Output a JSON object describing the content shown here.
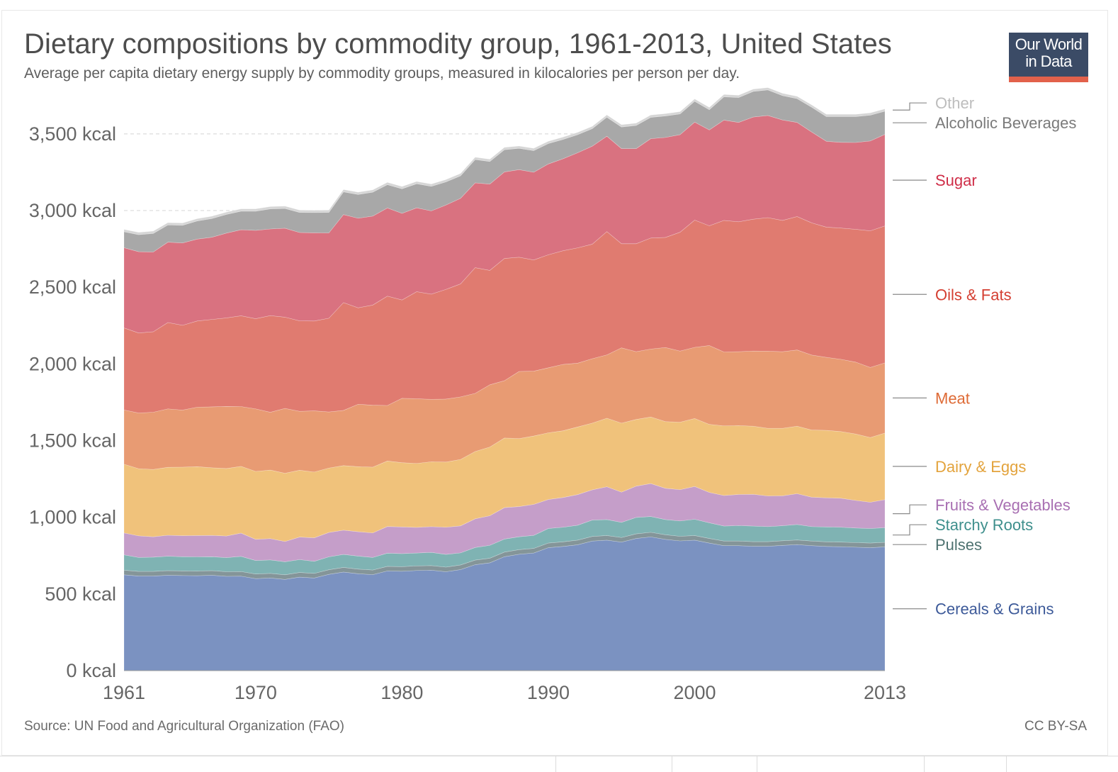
{
  "header": {
    "title": "Dietary compositions by commodity group, 1961-2013, United States",
    "subtitle": "Average per capita dietary energy supply by commodity groups, measured in kilocalories per person per day.",
    "logo_line1": "Our World",
    "logo_line2": "in Data"
  },
  "footer": {
    "source": "Source: UN Food and Agricultural Organization (FAO)",
    "license": "CC BY-SA"
  },
  "chart_data": {
    "type": "area",
    "stacked": true,
    "title": "Dietary compositions by commodity group, 1961-2013, United States",
    "subtitle": "Average per capita dietary energy supply by commodity groups, measured in kilocalories per person per day.",
    "ylim": [
      0,
      3800
    ],
    "y_ticks": [
      0,
      500,
      1000,
      1500,
      2000,
      2500,
      3000,
      3500
    ],
    "y_tick_labels": [
      "0 kcal",
      "500 kcal",
      "1,000 kcal",
      "1,500 kcal",
      "2,000 kcal",
      "2,500 kcal",
      "3,000 kcal",
      "3,500 kcal"
    ],
    "x_ticks": [
      1961,
      1970,
      1980,
      1990,
      2000,
      2013
    ],
    "x_tick_labels": [
      "1961",
      "1970",
      "1980",
      "1990",
      "2000",
      "2013"
    ],
    "grid": true,
    "legend": "right",
    "x": [
      1961,
      1962,
      1963,
      1964,
      1965,
      1966,
      1967,
      1968,
      1969,
      1970,
      1971,
      1972,
      1973,
      1974,
      1975,
      1976,
      1977,
      1978,
      1979,
      1980,
      1981,
      1982,
      1983,
      1984,
      1985,
      1986,
      1987,
      1988,
      1989,
      1990,
      1991,
      1992,
      1993,
      1994,
      1995,
      1996,
      1997,
      1998,
      1999,
      2000,
      2001,
      2002,
      2003,
      2004,
      2005,
      2006,
      2007,
      2008,
      2009,
      2010,
      2011,
      2012,
      2013
    ],
    "cumulative_top": {
      "Cereals & Grains": [
        625,
        617,
        617,
        622,
        620,
        619,
        622,
        615,
        616,
        600,
        604,
        595,
        610,
        604,
        628,
        643,
        632,
        626,
        650,
        648,
        653,
        655,
        645,
        659,
        691,
        703,
        743,
        759,
        767,
        802,
        810,
        821,
        845,
        851,
        838,
        862,
        872,
        856,
        846,
        851,
        832,
        815,
        815,
        811,
        811,
        817,
        822,
        815,
        810,
        808,
        805,
        802,
        807
      ],
      "Pulses": [
        655,
        647,
        647,
        652,
        650,
        649,
        652,
        645,
        646,
        630,
        634,
        625,
        640,
        634,
        658,
        673,
        662,
        656,
        680,
        678,
        683,
        685,
        675,
        689,
        721,
        733,
        773,
        789,
        797,
        832,
        840,
        851,
        875,
        881,
        868,
        892,
        902,
        886,
        876,
        881,
        862,
        845,
        845,
        841,
        841,
        847,
        852,
        845,
        840,
        838,
        835,
        832,
        837
      ],
      "Starchy Roots": [
        755,
        738,
        740,
        746,
        743,
        742,
        743,
        737,
        745,
        718,
        722,
        710,
        724,
        713,
        742,
        758,
        747,
        738,
        766,
        763,
        767,
        771,
        758,
        768,
        803,
        817,
        858,
        873,
        882,
        927,
        935,
        948,
        982,
        985,
        967,
        999,
        1005,
        985,
        976,
        987,
        964,
        943,
        946,
        943,
        939,
        945,
        953,
        939,
        937,
        935,
        930,
        927,
        932
      ],
      "Fruits & Vegetables": [
        898,
        879,
        873,
        883,
        880,
        881,
        882,
        878,
        897,
        856,
        861,
        842,
        871,
        866,
        901,
        916,
        906,
        898,
        940,
        937,
        934,
        939,
        935,
        944,
        990,
        1010,
        1063,
        1070,
        1084,
        1116,
        1129,
        1148,
        1179,
        1199,
        1164,
        1203,
        1220,
        1189,
        1180,
        1201,
        1162,
        1142,
        1149,
        1150,
        1139,
        1140,
        1154,
        1131,
        1127,
        1124,
        1110,
        1098,
        1115
      ],
      "Dairy & Eggs": [
        1346,
        1317,
        1312,
        1326,
        1327,
        1330,
        1323,
        1318,
        1332,
        1299,
        1308,
        1287,
        1307,
        1295,
        1321,
        1337,
        1330,
        1327,
        1367,
        1356,
        1351,
        1362,
        1360,
        1377,
        1429,
        1458,
        1517,
        1513,
        1530,
        1551,
        1564,
        1589,
        1614,
        1646,
        1614,
        1638,
        1654,
        1624,
        1620,
        1644,
        1606,
        1596,
        1598,
        1594,
        1580,
        1580,
        1594,
        1569,
        1567,
        1559,
        1543,
        1520,
        1549
      ],
      "Meat": [
        1700,
        1680,
        1685,
        1707,
        1699,
        1718,
        1720,
        1723,
        1722,
        1707,
        1685,
        1710,
        1691,
        1694,
        1687,
        1697,
        1737,
        1731,
        1729,
        1776,
        1773,
        1769,
        1771,
        1785,
        1808,
        1864,
        1891,
        1951,
        1953,
        1975,
        1997,
        2005,
        2034,
        2059,
        2105,
        2080,
        2097,
        2107,
        2084,
        2108,
        2120,
        2078,
        2080,
        2084,
        2083,
        2080,
        2091,
        2058,
        2043,
        2030,
        2012,
        1977,
        2007
      ],
      "Oils & Fats": [
        2235,
        2202,
        2210,
        2270,
        2252,
        2280,
        2290,
        2300,
        2314,
        2295,
        2315,
        2305,
        2281,
        2280,
        2298,
        2400,
        2366,
        2384,
        2442,
        2417,
        2471,
        2455,
        2486,
        2522,
        2628,
        2610,
        2688,
        2696,
        2678,
        2712,
        2738,
        2757,
        2781,
        2863,
        2784,
        2784,
        2821,
        2825,
        2859,
        2938,
        2901,
        2936,
        2927,
        2944,
        2954,
        2936,
        2961,
        2920,
        2892,
        2886,
        2878,
        2868,
        2900
      ],
      "Sugar": [
        2758,
        2732,
        2730,
        2794,
        2789,
        2814,
        2826,
        2853,
        2875,
        2871,
        2880,
        2885,
        2857,
        2855,
        2854,
        2974,
        2950,
        2964,
        3017,
        2982,
        3018,
        2998,
        3036,
        3080,
        3181,
        3173,
        3252,
        3267,
        3250,
        3304,
        3338,
        3377,
        3420,
        3485,
        3404,
        3404,
        3469,
        3477,
        3495,
        3577,
        3526,
        3590,
        3575,
        3610,
        3620,
        3591,
        3575,
        3512,
        3452,
        3445,
        3444,
        3454,
        3497
      ],
      "Alcoholic Beverages": [
        2862,
        2843,
        2851,
        2906,
        2904,
        2932,
        2948,
        2975,
        2996,
        2996,
        3011,
        3014,
        2988,
        2987,
        2988,
        3122,
        3105,
        3120,
        3169,
        3142,
        3175,
        3158,
        3187,
        3227,
        3333,
        3320,
        3397,
        3406,
        3391,
        3437,
        3464,
        3495,
        3534,
        3609,
        3545,
        3555,
        3608,
        3617,
        3630,
        3713,
        3658,
        3742,
        3737,
        3777,
        3787,
        3750,
        3730,
        3674,
        3613,
        3613,
        3613,
        3622,
        3648
      ],
      "Other": [
        2877,
        2858,
        2866,
        2921,
        2919,
        2947,
        2963,
        2990,
        3011,
        3011,
        3026,
        3029,
        3003,
        3002,
        3003,
        3137,
        3120,
        3135,
        3184,
        3157,
        3190,
        3173,
        3202,
        3242,
        3348,
        3335,
        3412,
        3421,
        3406,
        3452,
        3479,
        3510,
        3549,
        3624,
        3560,
        3570,
        3623,
        3632,
        3645,
        3728,
        3673,
        3757,
        3752,
        3792,
        3802,
        3765,
        3745,
        3689,
        3628,
        3628,
        3628,
        3637,
        3663
      ]
    },
    "series": [
      {
        "name": "Cereals & Grains",
        "color": "#7b92c1",
        "label_color": "#3d5a99"
      },
      {
        "name": "Pulses",
        "color": "#849599",
        "label_color": "#4e7270"
      },
      {
        "name": "Starchy Roots",
        "color": "#7fb3b3",
        "label_color": "#3e8f8c"
      },
      {
        "name": "Fruits & Vegetables",
        "color": "#c59ec9",
        "label_color": "#a86fb2"
      },
      {
        "name": "Dairy & Eggs",
        "color": "#f0c27b",
        "label_color": "#e3a33c"
      },
      {
        "name": "Meat",
        "color": "#e89b73",
        "label_color": "#de6a35"
      },
      {
        "name": "Oils & Fats",
        "color": "#e07b70",
        "label_color": "#d43e31"
      },
      {
        "name": "Sugar",
        "color": "#d97280",
        "label_color": "#cf2e48"
      },
      {
        "name": "Alcoholic Beverages",
        "color": "#a8a8a8",
        "label_color": "#7a7a7a"
      },
      {
        "name": "Other",
        "color": "#d6d6d6",
        "label_color": "#bdbdbd"
      }
    ]
  }
}
